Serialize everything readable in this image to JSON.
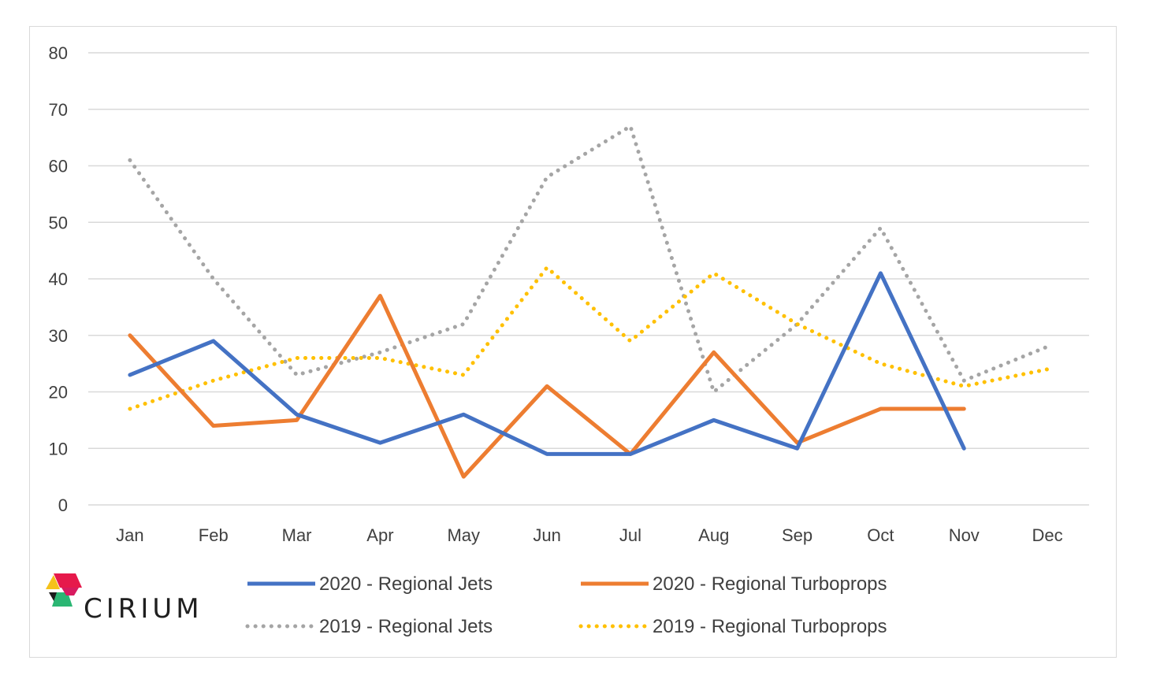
{
  "chart_data": {
    "type": "line",
    "categories": [
      "Jan",
      "Feb",
      "Mar",
      "Apr",
      "May",
      "Jun",
      "Jul",
      "Aug",
      "Sep",
      "Oct",
      "Nov",
      "Dec"
    ],
    "ylim": [
      0,
      80
    ],
    "yticks": [
      0,
      10,
      20,
      30,
      40,
      50,
      60,
      70,
      80
    ],
    "grid": true,
    "legend_position": "bottom",
    "series": [
      {
        "name": "2020 - Regional Jets",
        "color": "#4472C4",
        "style": "solid",
        "values": [
          23,
          29,
          16,
          11,
          16,
          9,
          9,
          15,
          10,
          41,
          10,
          null
        ]
      },
      {
        "name": "2020 - Regional Turboprops",
        "color": "#ED7D31",
        "style": "solid",
        "values": [
          30,
          14,
          15,
          37,
          5,
          21,
          9,
          27,
          11,
          17,
          17,
          null
        ]
      },
      {
        "name": "2019 - Regional Jets",
        "color": "#A5A5A5",
        "style": "dotted",
        "values": [
          61,
          40,
          23,
          27,
          32,
          58,
          67,
          20,
          32,
          49,
          22,
          28
        ]
      },
      {
        "name": "2019 - Regional Turboprops",
        "color": "#FFC000",
        "style": "dotted",
        "values": [
          17,
          22,
          26,
          26,
          23,
          42,
          29,
          41,
          32,
          25,
          21,
          24
        ]
      }
    ]
  },
  "logo": {
    "text": "CIRIUM",
    "colors": [
      "#E6194B",
      "#F5A623",
      "#2BB673",
      "#1B1B1B",
      "#F1E05A"
    ]
  }
}
